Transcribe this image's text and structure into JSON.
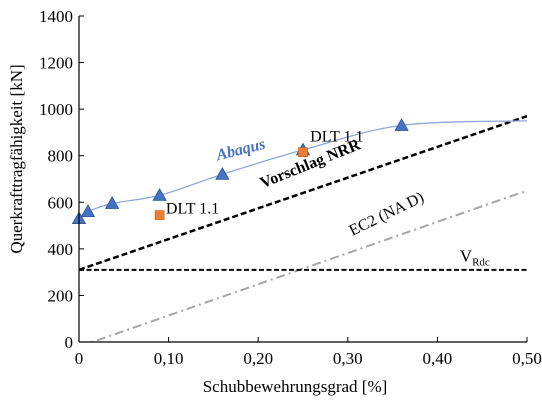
{
  "chart_data": {
    "type": "line",
    "xlabel": "Schubbewehrungsgrad [%]",
    "ylabel": "Querkrafttragfähigkeit [kN]",
    "xlim": [
      0,
      0.5
    ],
    "ylim": [
      0,
      1400
    ],
    "x_ticks": [
      0,
      0.1,
      0.2,
      0.3,
      0.4,
      0.5
    ],
    "x_tick_labels": [
      "0",
      "0,10",
      "0,20",
      "0,30",
      "0,40",
      "0,50"
    ],
    "y_ticks": [
      0,
      200,
      400,
      600,
      800,
      1000,
      1200,
      1400
    ],
    "y_tick_labels": [
      "0",
      "200",
      "400",
      "600",
      "800",
      "1000",
      "1200",
      "1400"
    ],
    "grid": false,
    "colors": {
      "abaqus": "#4472c4",
      "abaqus_line": "#8fa8d8",
      "dlt": "#ed7d31",
      "ec2": "#a6a6a6",
      "black": "#000000"
    },
    "series": [
      {
        "name": "Abaqus",
        "style": "line-triangle",
        "x": [
          0,
          0.01,
          0.037,
          0.09,
          0.16,
          0.25,
          0.36,
          0.5
        ],
        "y": [
          530,
          560,
          595,
          630,
          720,
          825,
          930,
          950
        ],
        "marker_count": 7
      },
      {
        "name": "Vorschlag NRR",
        "style": "dashed",
        "x": [
          0,
          0.5
        ],
        "y": [
          310,
          970
        ]
      },
      {
        "name": "EC2 (NA D)",
        "style": "dashdot",
        "x": [
          0,
          0.5
        ],
        "y": [
          -20,
          650
        ]
      },
      {
        "name": "V",
        "name_sub": "Rdc",
        "style": "dashed",
        "x": [
          0,
          0.5
        ],
        "y": [
          310,
          310
        ]
      },
      {
        "name": "DLT 1.1",
        "style": "square-markers",
        "x": [
          0.09,
          0.25
        ],
        "y": [
          545,
          815
        ]
      }
    ],
    "annotations": [
      {
        "key": "abaqus",
        "text": "Abaqus",
        "x": 0.155,
        "y": 780
      },
      {
        "key": "nrr",
        "text": "Vorschlag NRR",
        "x": 0.205,
        "y": 660
      },
      {
        "key": "ec2",
        "text": "EC2 (NA D)",
        "x": 0.305,
        "y": 455
      },
      {
        "key": "vrdc",
        "text": "V",
        "sub": "Rdc",
        "x": 0.425,
        "y": 345
      },
      {
        "key": "dlt1",
        "text": "DLT 1.1",
        "x": 0.097,
        "y": 552
      },
      {
        "key": "dlt2",
        "text": "DLT 1.1",
        "x": 0.258,
        "y": 862
      }
    ]
  }
}
